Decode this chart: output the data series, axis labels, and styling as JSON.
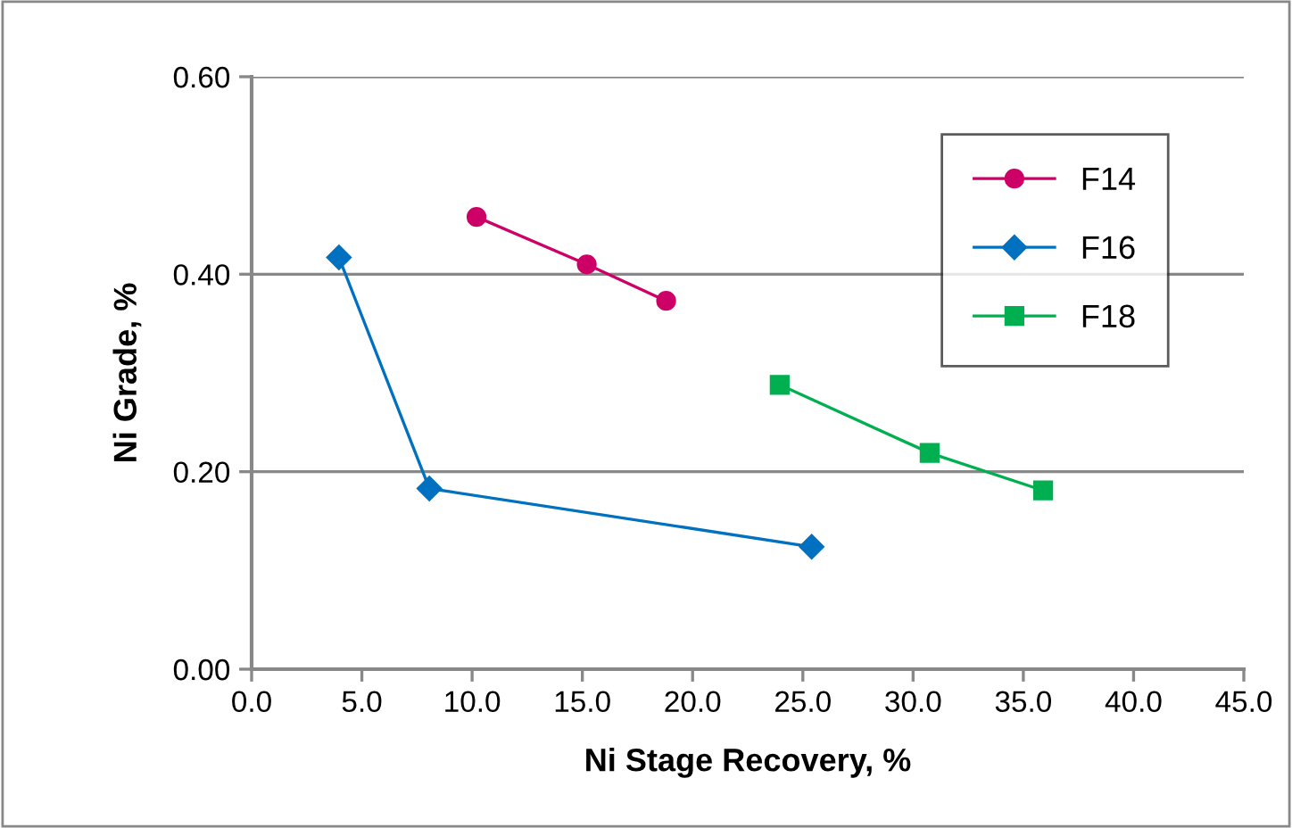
{
  "chart_data": {
    "type": "line",
    "xlabel": "Ni Stage Recovery, %",
    "ylabel": "Ni Grade, %",
    "xlim": [
      0,
      45
    ],
    "xticks": [
      {
        "value": 0,
        "label": "0.0"
      },
      {
        "value": 5,
        "label": "5.0"
      },
      {
        "value": 10,
        "label": "10.0"
      },
      {
        "value": 15,
        "label": "15.0"
      },
      {
        "value": 20,
        "label": "20.0"
      },
      {
        "value": 25,
        "label": "25.0"
      },
      {
        "value": 30,
        "label": "30.0"
      },
      {
        "value": 35,
        "label": "35.0"
      },
      {
        "value": 40,
        "label": "40.0"
      },
      {
        "value": 45,
        "label": "45.0"
      }
    ],
    "ylim": [
      0,
      0.6
    ],
    "yticks": [
      {
        "value": 0,
        "label": "0.00"
      },
      {
        "value": 0.2,
        "label": "0.20"
      },
      {
        "value": 0.4,
        "label": "0.40"
      },
      {
        "value": 0.6,
        "label": "0.60"
      }
    ],
    "grid": "y",
    "legend": "top right",
    "series": [
      {
        "name": "F14",
        "color": "#cc0066",
        "marker": "circle",
        "x": [
          10.2,
          15.2,
          18.8
        ],
        "values": [
          0.458,
          0.41,
          0.373
        ]
      },
      {
        "name": "F16",
        "color": "#0070c0",
        "marker": "diamond",
        "x": [
          3.96,
          8.06,
          25.4
        ],
        "values": [
          0.417,
          0.183,
          0.124
        ]
      },
      {
        "name": "F18",
        "color": "#00b050",
        "marker": "square",
        "x": [
          23.95,
          30.75,
          35.9
        ],
        "values": [
          0.288,
          0.219,
          0.181
        ]
      }
    ]
  }
}
